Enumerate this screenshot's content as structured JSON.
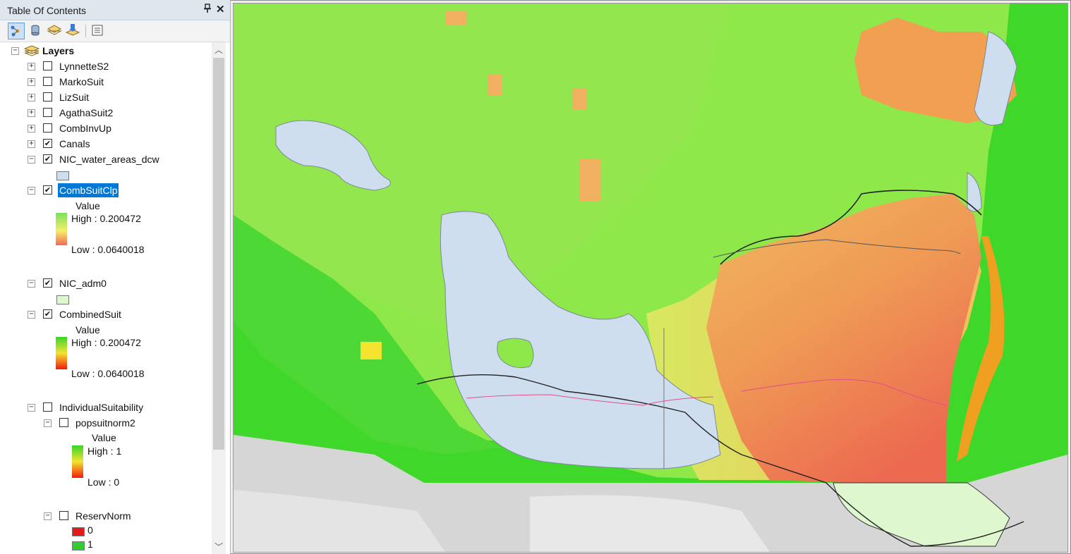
{
  "toc": {
    "title": "Table Of Contents",
    "pin_glyph": "⬇",
    "close_glyph": "✕",
    "toolbar": [
      {
        "icon": "list-by-drawing-order-icon",
        "active": true
      },
      {
        "icon": "list-by-source-icon",
        "active": false
      },
      {
        "icon": "list-by-visibility-icon",
        "active": false
      },
      {
        "icon": "list-by-selection-icon",
        "active": false
      },
      {
        "icon": "options-icon",
        "active": false
      }
    ],
    "root": {
      "label": "Layers",
      "expander": "−"
    },
    "layers": [
      {
        "label": "LynnetteS2",
        "checked": false,
        "expander": "+"
      },
      {
        "label": "MarkoSuit",
        "checked": false,
        "expander": "+"
      },
      {
        "label": "LizSuit",
        "checked": false,
        "expander": "+"
      },
      {
        "label": "AgathaSuit2",
        "checked": false,
        "expander": "+"
      },
      {
        "label": "CombInvUp",
        "checked": false,
        "expander": "+"
      },
      {
        "label": "Canals",
        "checked": true,
        "expander": "+"
      },
      {
        "label": "NIC_water_areas_dcw",
        "checked": true,
        "expander": "−"
      },
      {
        "label": "CombSuitClp",
        "checked": true,
        "expander": "−",
        "selected": true
      },
      {
        "label": "NIC_adm0",
        "checked": true,
        "expander": "−"
      },
      {
        "label": "CombinedSuit",
        "checked": true,
        "expander": "−"
      },
      {
        "label": "IndividualSuitability",
        "checked": false,
        "expander": "−"
      },
      {
        "label": "popsuitnorm2",
        "checked": false,
        "expander": "−"
      },
      {
        "label": "ReservNorm",
        "checked": false,
        "expander": "−"
      }
    ],
    "legend_combsuitclp": {
      "title": "Value",
      "high": "High : 0.200472",
      "low": "Low : 0.0640018"
    },
    "legend_combinedsuit": {
      "title": "Value",
      "high": "High : 0.200472",
      "low": "Low : 0.0640018"
    },
    "legend_popsuitnorm2": {
      "title": "Value",
      "high": "High : 1",
      "low": "Low : 0"
    },
    "legend_reservnorm": [
      {
        "value": "0",
        "color": "#e31a1c"
      },
      {
        "value": "1",
        "color": "#33cc33"
      }
    ],
    "check_glyph": "✔"
  },
  "colors": {
    "selection": "#0078d7",
    "water": "#cfdeef",
    "admin_fill": "#dff7cf",
    "raster_green": "#3fd82a",
    "raster_lime": "#8ee84a",
    "raster_orange": "#f0a050",
    "raster_red": "#ee6d4e",
    "basemap": "#d6d6d6"
  }
}
